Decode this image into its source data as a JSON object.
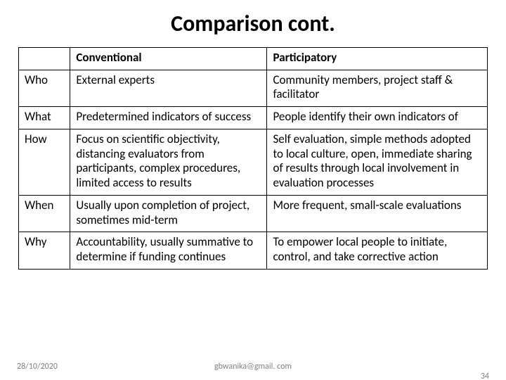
{
  "title": "Comparison cont.",
  "table": {
    "header": {
      "blank": "",
      "col1": "Conventional",
      "col2": "Participatory"
    },
    "rows": [
      {
        "label": "Who",
        "conv": "External experts",
        "part": "Community members, project staff & facilitator"
      },
      {
        "label": "What",
        "conv": "Predetermined indicators of success",
        "part": "People identify their own indicators of"
      },
      {
        "label": "How",
        "conv": "Focus on scientific objectivity, distancing evaluators from participants, complex procedures, limited access to results",
        "part": "Self evaluation, simple methods adopted to local culture, open, immediate sharing of results through local involvement in evaluation processes"
      },
      {
        "label": "When",
        "conv": "Usually upon completion of project, sometimes mid-term",
        "part": "More frequent, small-scale evaluations"
      },
      {
        "label": "Why",
        "conv": "Accountability, usually summative to determine if funding continues",
        "part": "To empower local people to initiate, control, and take corrective action"
      }
    ]
  },
  "footer": {
    "date": "28/10/2020",
    "email": "gbwanika@gmail. com",
    "page": "34"
  },
  "colors": {
    "text": "#000000",
    "footer_text": "#808080",
    "border": "#000000",
    "background": "#ffffff"
  },
  "typography": {
    "title_fontsize_pt": 24,
    "cell_fontsize_pt": 13,
    "footer_fontsize_pt": 9,
    "title_weight": 700,
    "header_weight": 700
  }
}
